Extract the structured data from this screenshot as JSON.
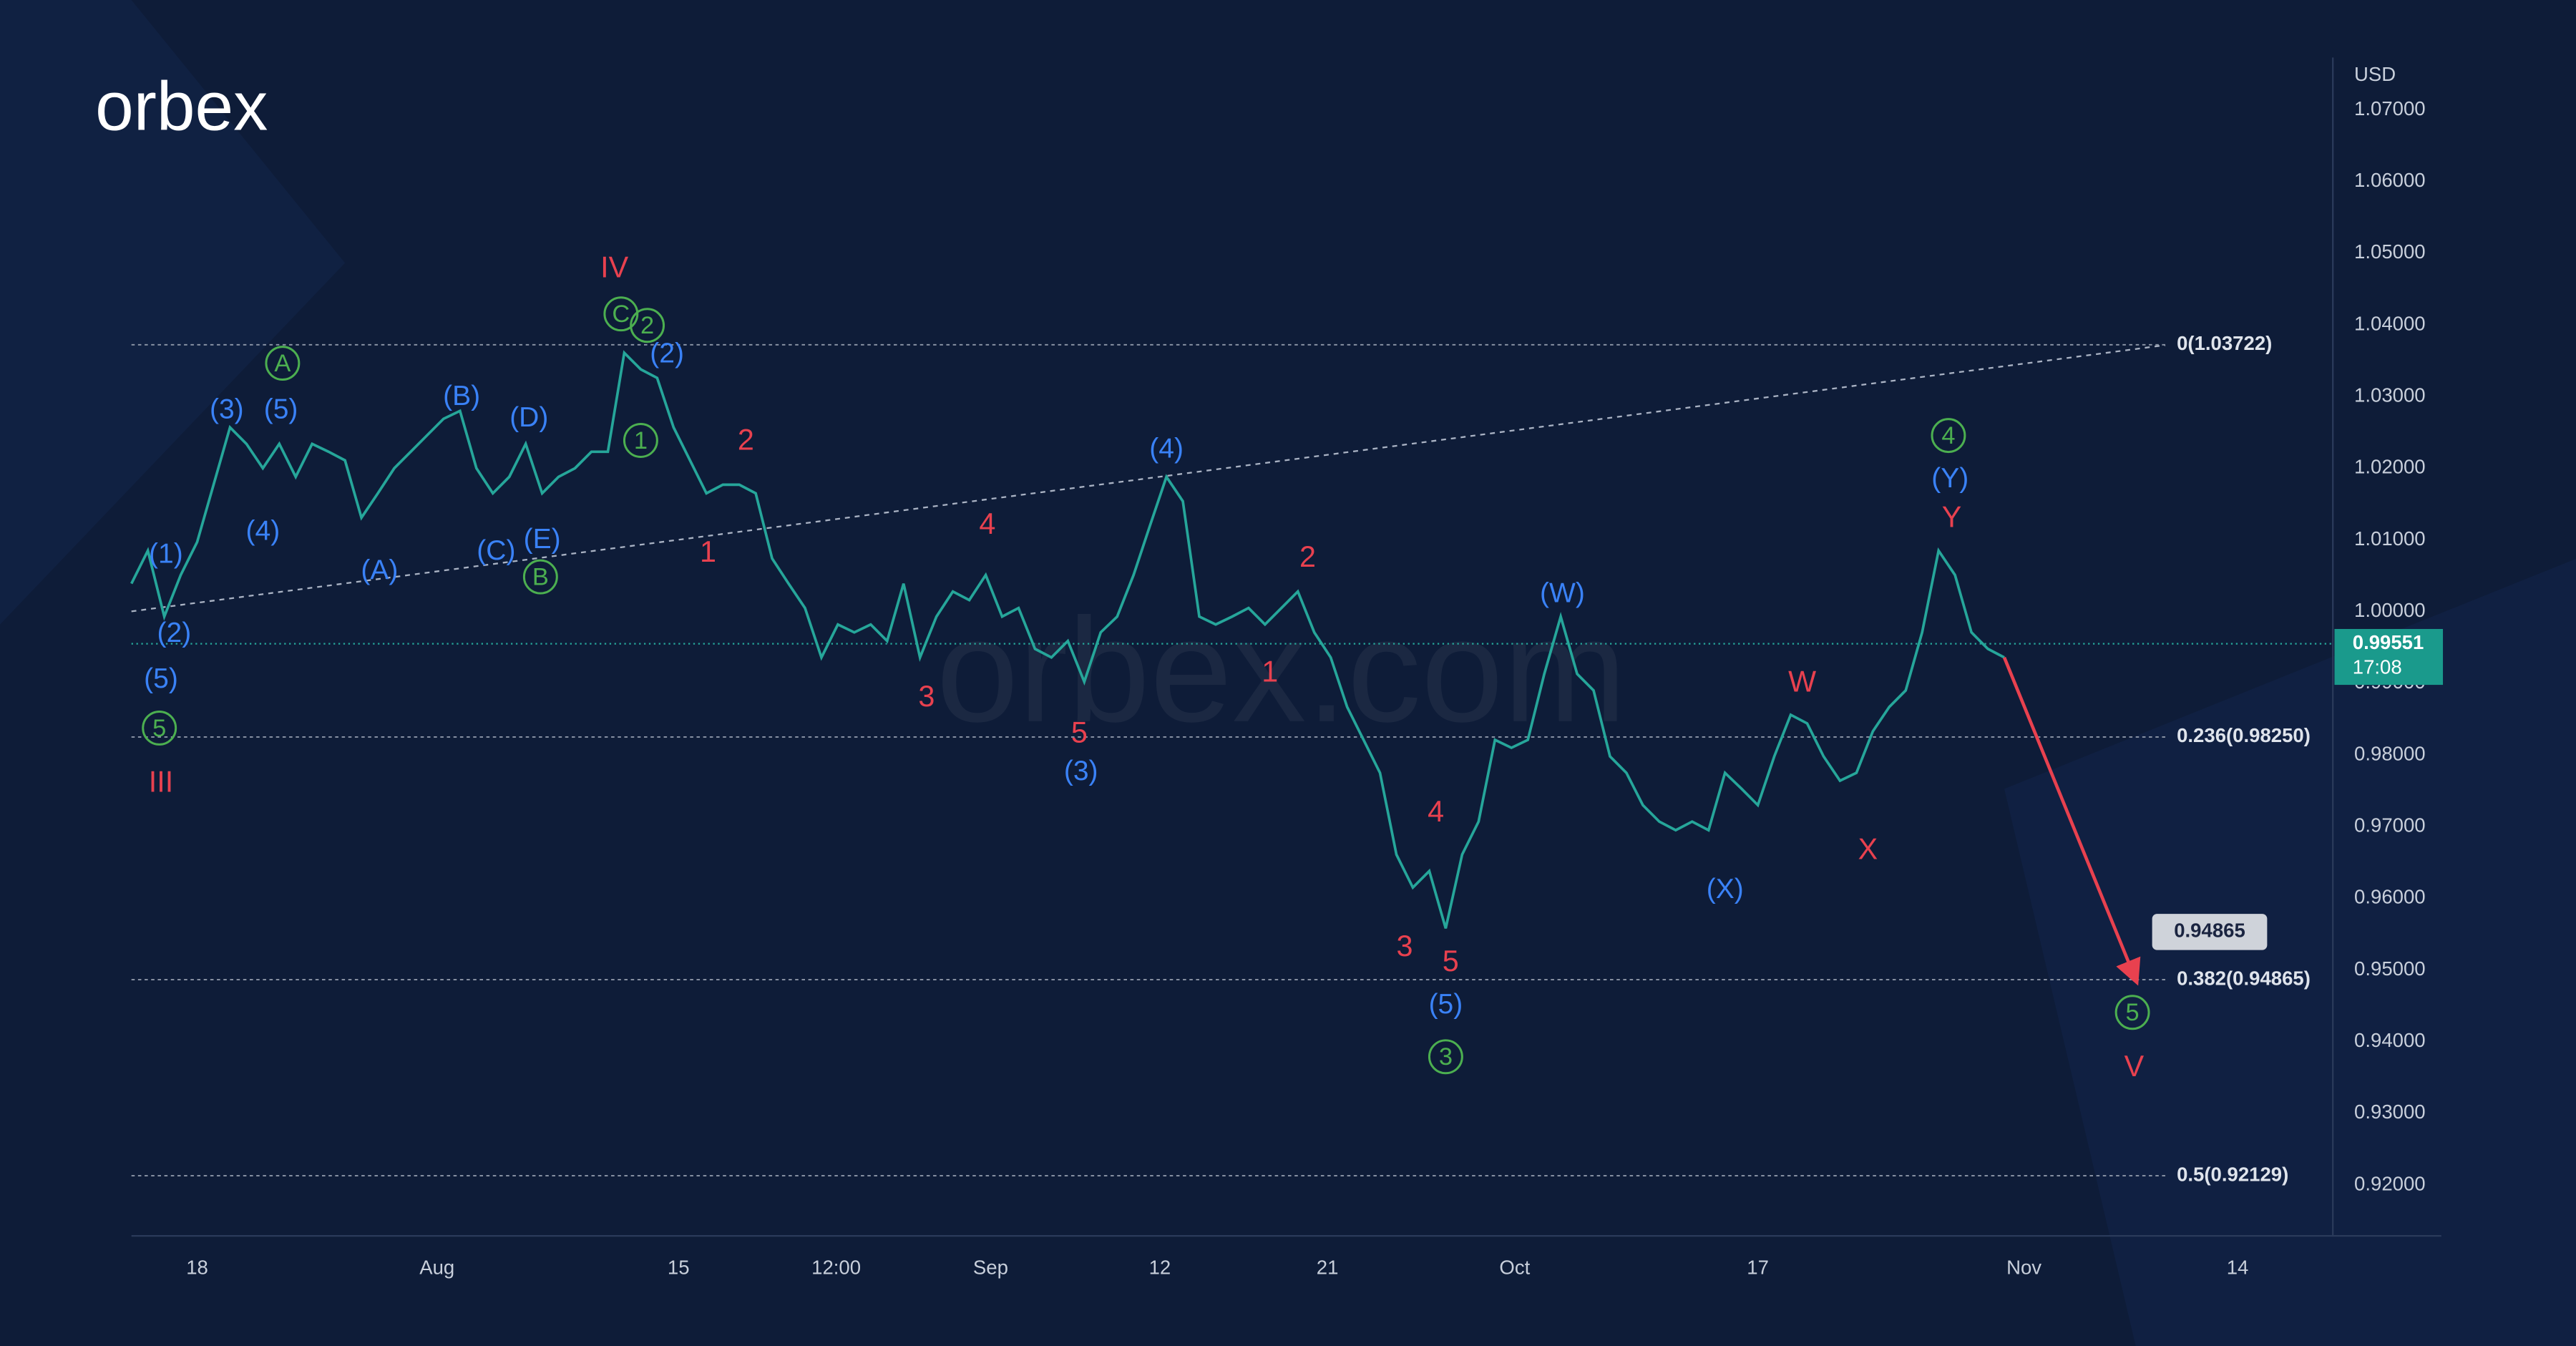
{
  "chart_data": {
    "type": "line",
    "logo": "orbex",
    "watermark": "orbex.com",
    "unit": "USD",
    "xlim": [
      0,
      134
    ],
    "xticks": [
      {
        "value": 4,
        "label": "18"
      },
      {
        "value": 18.6,
        "label": "Aug"
      },
      {
        "value": 33.3,
        "label": "15"
      },
      {
        "value": 42.9,
        "label": "12:00"
      },
      {
        "value": 52.3,
        "label": "Sep"
      },
      {
        "value": 62.6,
        "label": "12"
      },
      {
        "value": 72.8,
        "label": "21"
      },
      {
        "value": 84.2,
        "label": "Oct"
      },
      {
        "value": 99,
        "label": "17"
      },
      {
        "value": 115.2,
        "label": "Nov"
      },
      {
        "value": 128.2,
        "label": "14"
      }
    ],
    "ylim": [
      0.9129,
      1.0773
    ],
    "yticks": [
      {
        "value": 0.92,
        "label": "0.92000"
      },
      {
        "value": 0.93,
        "label": "0.93000"
      },
      {
        "value": 0.94,
        "label": "0.94000"
      },
      {
        "value": 0.95,
        "label": "0.95000"
      },
      {
        "value": 0.96,
        "label": "0.96000"
      },
      {
        "value": 0.97,
        "label": "0.97000"
      },
      {
        "value": 0.98,
        "label": "0.98000"
      },
      {
        "value": 0.99,
        "label": "0.99000"
      },
      {
        "value": 1.0,
        "label": "1.00000"
      },
      {
        "value": 1.01,
        "label": "1.01000"
      },
      {
        "value": 1.02,
        "label": "1.02000"
      },
      {
        "value": 1.03,
        "label": "1.03000"
      },
      {
        "value": 1.04,
        "label": "1.04000"
      },
      {
        "value": 1.05,
        "label": "1.05000"
      },
      {
        "value": 1.06,
        "label": "1.06000"
      },
      {
        "value": 1.07,
        "label": "1.07000"
      }
    ],
    "x": [
      0,
      1,
      2,
      3,
      4,
      5,
      6,
      7,
      8,
      9,
      10,
      11,
      12,
      13,
      14,
      15,
      16,
      17,
      18,
      19,
      20,
      21,
      22,
      23,
      24,
      25,
      26,
      27,
      28,
      29,
      30,
      31,
      32,
      33,
      34,
      35,
      36,
      37,
      38,
      39,
      40,
      41,
      42,
      43,
      44,
      45,
      46,
      47,
      48,
      49,
      50,
      51,
      52,
      53,
      54,
      55,
      56,
      57,
      58,
      59,
      60,
      61,
      62,
      63,
      64,
      65,
      66,
      67,
      68,
      69,
      70,
      71,
      72,
      73,
      74,
      75,
      76,
      77,
      78,
      79,
      80,
      81,
      82,
      83,
      84,
      85,
      86,
      87,
      88,
      89,
      90,
      91,
      92,
      93,
      94,
      95,
      96,
      97,
      98,
      99,
      100,
      101,
      102,
      103,
      104,
      105,
      106,
      107,
      108,
      109,
      110,
      111,
      112,
      113,
      114
    ],
    "series": [
      {
        "color": "#26a69a",
        "values": [
          1.0039,
          1.0085,
          0.9993,
          1.0051,
          1.0097,
          1.0177,
          1.0257,
          1.0234,
          1.02,
          1.0234,
          1.0188,
          1.0234,
          1.0223,
          1.0211,
          1.0131,
          1.0165,
          1.02,
          1.0223,
          1.0246,
          1.0269,
          1.028,
          1.02,
          1.0165,
          1.0188,
          1.0234,
          1.0165,
          1.0188,
          1.02,
          1.0223,
          1.0223,
          1.0361,
          1.0338,
          1.0326,
          1.0257,
          1.0211,
          1.0165,
          1.0177,
          1.0177,
          1.0165,
          1.0074,
          1.0039,
          1.0005,
          0.9936,
          0.9982,
          0.9971,
          0.9982,
          0.9959,
          1.0039,
          0.9936,
          0.9993,
          1.0028,
          1.0016,
          1.0051,
          0.9993,
          1.0005,
          0.9948,
          0.9936,
          0.9959,
          0.9902,
          0.9971,
          0.9993,
          1.0051,
          1.012,
          1.0188,
          1.0154,
          0.9993,
          0.9982,
          0.9993,
          1.0005,
          0.9982,
          1.0005,
          1.0028,
          0.9971,
          0.9936,
          0.9867,
          0.9821,
          0.9775,
          0.9661,
          0.9615,
          0.9638,
          0.9558,
          0.9661,
          0.9707,
          0.9821,
          0.981,
          0.9821,
          0.9913,
          0.9993,
          0.9913,
          0.989,
          0.9798,
          0.9775,
          0.973,
          0.9707,
          0.9695,
          0.9707,
          0.9695,
          0.9775,
          0.9753,
          0.973,
          0.9798,
          0.9856,
          0.9844,
          0.9798,
          0.9764,
          0.9775,
          0.9833,
          0.9867,
          0.989,
          0.9971,
          1.0085,
          1.0051,
          0.9971,
          0.9948,
          0.9936
        ]
      }
    ],
    "current_price": 0.99551,
    "countdown": "17:08",
    "fib_levels": [
      {
        "label": "0(1.03722)",
        "value": 1.03722
      },
      {
        "label": "0.236(0.98250)",
        "value": 0.9825
      },
      {
        "label": "0.382(0.94865)",
        "value": 0.94865
      },
      {
        "label": "0.5(0.92129)",
        "value": 0.92129
      }
    ],
    "target": {
      "value": 0.94865,
      "x": 122
    },
    "annotations": [
      "IV",
      "C",
      "2",
      "(2)",
      "A",
      "(3)",
      "(5)",
      "(B)",
      "(D)",
      "1",
      "2",
      "(4)",
      "(A)",
      "(C)",
      "(E)",
      "B",
      "1",
      "(1)",
      "(2)",
      "(5)",
      "5",
      "III",
      "4",
      "3",
      "5",
      "(3)",
      "(4)",
      "2",
      "1",
      "4",
      "3",
      "5",
      "(5)",
      "3",
      "(W)",
      "W",
      "X",
      "(X)",
      "4",
      "(Y)",
      "Y",
      "5",
      "V"
    ]
  }
}
